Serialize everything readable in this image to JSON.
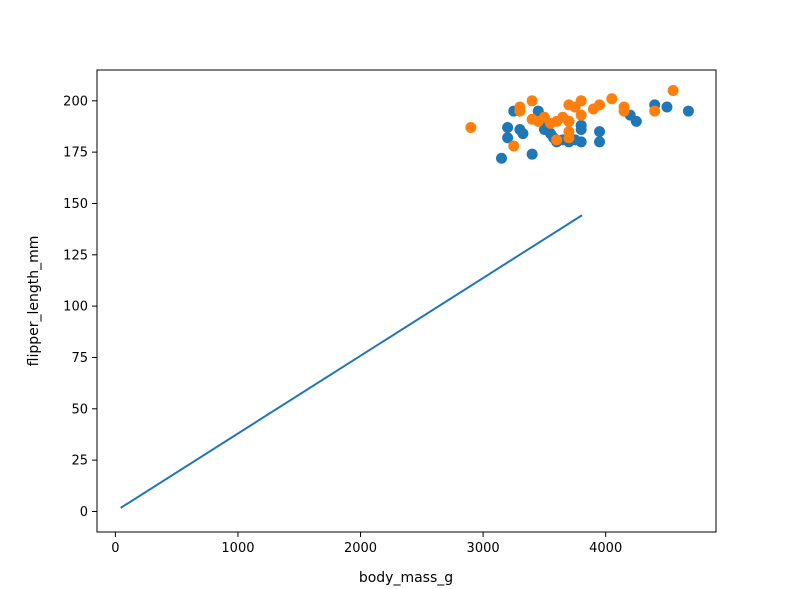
{
  "chart_data": {
    "type": "scatter",
    "xlabel": "body_mass_g",
    "ylabel": "flipper_length_mm",
    "xlim": [
      -150,
      4900
    ],
    "ylim": [
      -10,
      215
    ],
    "x_ticks": [
      0,
      1000,
      2000,
      3000,
      4000
    ],
    "x_tick_labels": [
      "0",
      "1000",
      "2000",
      "3000",
      "4000"
    ],
    "y_ticks": [
      0,
      25,
      50,
      75,
      100,
      125,
      150,
      175,
      200
    ],
    "y_tick_labels": [
      "0",
      "25",
      "50",
      "75",
      "100",
      "125",
      "150",
      "175",
      "200"
    ],
    "grid": false,
    "legend": "none",
    "line": {
      "color": "#1f77b4",
      "points": [
        [
          50,
          2
        ],
        [
          3800,
          144
        ]
      ]
    },
    "series": [
      {
        "color": "#1f77b4",
        "points": [
          [
            3150,
            172
          ],
          [
            3200,
            182
          ],
          [
            3200,
            187
          ],
          [
            3250,
            195
          ],
          [
            3300,
            186
          ],
          [
            3325,
            184
          ],
          [
            3400,
            174
          ],
          [
            3450,
            195
          ],
          [
            3475,
            190
          ],
          [
            3500,
            186
          ],
          [
            3550,
            184
          ],
          [
            3575,
            182
          ],
          [
            3600,
            180
          ],
          [
            3650,
            181
          ],
          [
            3700,
            180
          ],
          [
            3700,
            190
          ],
          [
            3750,
            181
          ],
          [
            3800,
            180
          ],
          [
            3800,
            186
          ],
          [
            3800,
            188
          ],
          [
            3950,
            180
          ],
          [
            3950,
            185
          ],
          [
            4200,
            193
          ],
          [
            4250,
            190
          ],
          [
            4400,
            198
          ],
          [
            4500,
            197
          ],
          [
            4675,
            195
          ]
        ]
      },
      {
        "color": "#ff7f0e",
        "points": [
          [
            2900,
            187
          ],
          [
            3250,
            178
          ],
          [
            3300,
            195
          ],
          [
            3300,
            197
          ],
          [
            3400,
            191
          ],
          [
            3400,
            200
          ],
          [
            3450,
            190
          ],
          [
            3500,
            192
          ],
          [
            3550,
            189
          ],
          [
            3600,
            190
          ],
          [
            3600,
            181
          ],
          [
            3650,
            192
          ],
          [
            3700,
            198
          ],
          [
            3700,
            190
          ],
          [
            3700,
            185
          ],
          [
            3700,
            182
          ],
          [
            3750,
            197
          ],
          [
            3800,
            193
          ],
          [
            3800,
            200
          ],
          [
            3900,
            196
          ],
          [
            3950,
            198
          ],
          [
            4050,
            201
          ],
          [
            4150,
            195
          ],
          [
            4150,
            197
          ],
          [
            4400,
            195
          ],
          [
            4550,
            205
          ]
        ]
      }
    ]
  }
}
